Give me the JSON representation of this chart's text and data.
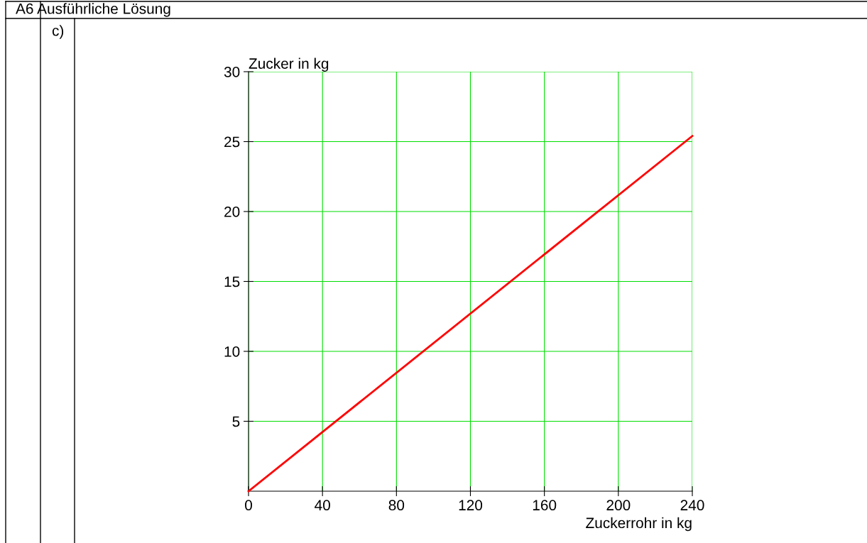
{
  "chart_data": {
    "type": "line",
    "title": "A6 Ausführliche Lösung",
    "annotations": [
      "c)"
    ],
    "xlabel": "Zuckerrohr in kg",
    "ylabel": "Zucker in kg",
    "x": [
      0,
      240
    ],
    "series": [
      {
        "color": "#ff0000",
        "values": [
          0,
          25.4
        ]
      }
    ],
    "xlim": [
      0,
      240
    ],
    "ylim": [
      0,
      30
    ],
    "xticks": [
      0,
      40,
      80,
      120,
      160,
      200,
      240
    ],
    "yticks": [
      5,
      10,
      15,
      20,
      25,
      30
    ],
    "grid": true,
    "marker": "none",
    "line_style": "solid"
  }
}
